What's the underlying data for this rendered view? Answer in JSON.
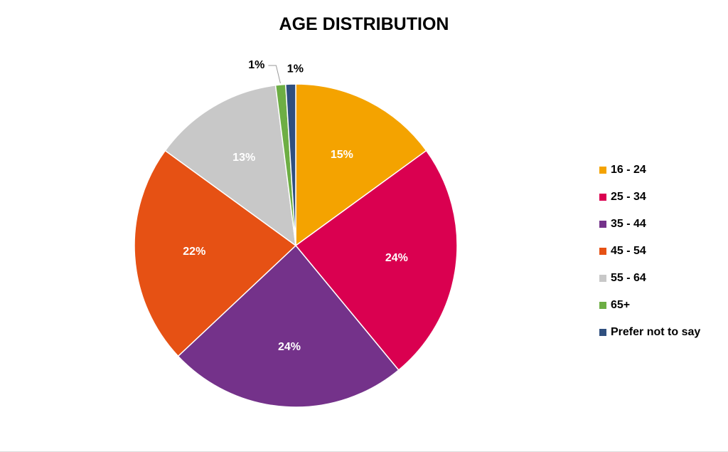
{
  "chart_data": {
    "type": "pie",
    "title": "AGE DISTRIBUTION",
    "legend_position": "right",
    "start_angle": "12 o'clock, clockwise",
    "slices": [
      {
        "label": "16 - 24",
        "value": 15,
        "display": "15%",
        "color": "#F4A300",
        "label_color": "#ffffff",
        "label_placement": "inside"
      },
      {
        "label": "25 - 34",
        "value": 24,
        "display": "24%",
        "color": "#DA0050",
        "label_color": "#ffffff",
        "label_placement": "inside"
      },
      {
        "label": "35 - 44",
        "value": 24,
        "display": "24%",
        "color": "#74328A",
        "label_color": "#ffffff",
        "label_placement": "inside"
      },
      {
        "label": "45 - 54",
        "value": 22,
        "display": "22%",
        "color": "#E65114",
        "label_color": "#ffffff",
        "label_placement": "inside"
      },
      {
        "label": "55 - 64",
        "value": 13,
        "display": "13%",
        "color": "#C8C8C8",
        "label_color": "#ffffff",
        "label_placement": "inside"
      },
      {
        "label": "65+",
        "value": 1,
        "display": "1%",
        "color": "#6DAE44",
        "label_color": "#000000",
        "label_placement": "outside-leader"
      },
      {
        "label": "Prefer not to say",
        "value": 1,
        "display": "1%",
        "color": "#2F4F7F",
        "label_color": "#000000",
        "label_placement": "outside"
      }
    ]
  }
}
